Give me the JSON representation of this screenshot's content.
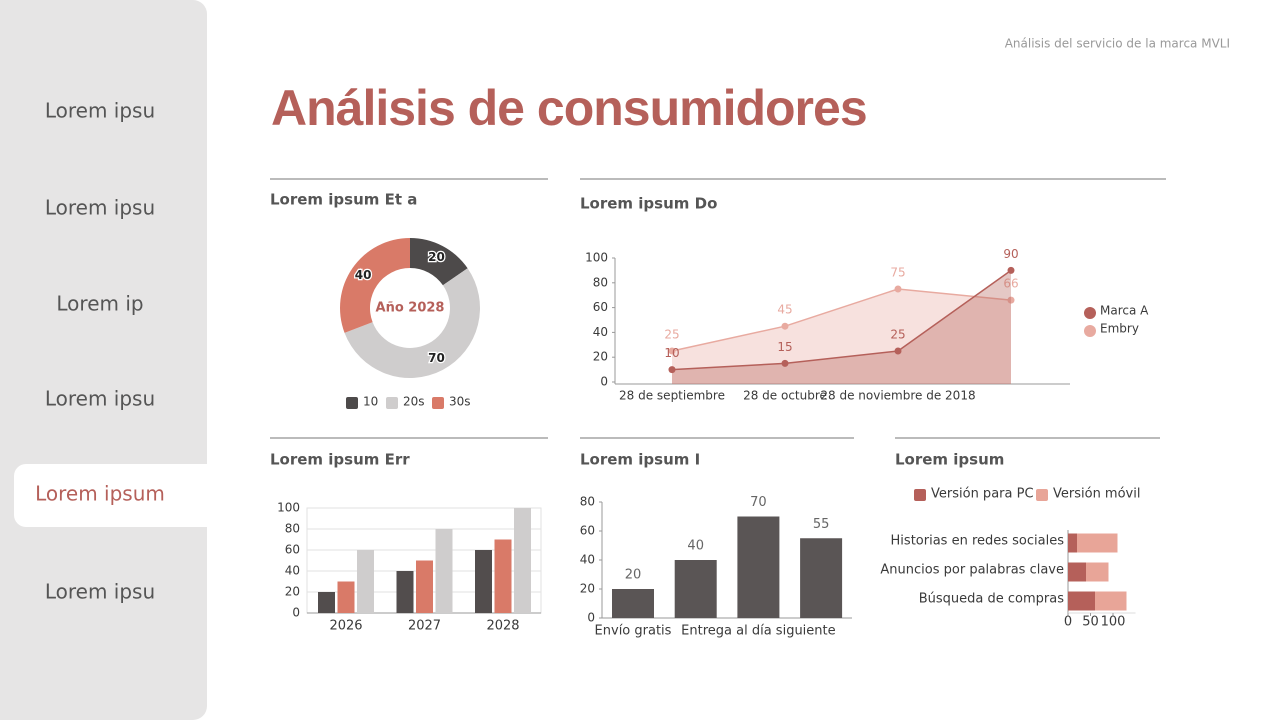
{
  "header": {
    "subtitle": "Análisis del servicio de la marca MVLI",
    "title": "Análisis de consumidores"
  },
  "sidebar": {
    "items": [
      "Lorem ipsu",
      "Lorem ipsu",
      "Lorem ip",
      "Lorem ipsu",
      "Lorem ipsum",
      "Lorem ipsu"
    ],
    "active": 4
  },
  "chart_data": [
    {
      "type": "donut",
      "title": "Lorem ipsum Et a",
      "center_label": "Año 2028",
      "categories": [
        "10",
        "20s",
        "30s"
      ],
      "values": [
        20,
        70,
        40
      ],
      "colors": [
        "#4d4a4a",
        "#cfcdcd",
        "#d97a68"
      ],
      "legend": "bottom"
    },
    {
      "type": "area",
      "title": "Lorem ipsum Do",
      "categories": [
        "28 de septiembre",
        "28 de octubre",
        "28 de noviembre de 2018",
        null
      ],
      "series": [
        {
          "name": "Marca A",
          "color": "#b5605a",
          "values": [
            10,
            15,
            25,
            90
          ]
        },
        {
          "name": "Embry",
          "color": "#e8aaa0",
          "values": [
            25,
            45,
            75,
            66
          ]
        }
      ],
      "ylim": [
        0,
        100
      ],
      "yticks": [
        0,
        20,
        40,
        60,
        80,
        100
      ],
      "legend": "right"
    },
    {
      "type": "bar",
      "title": "Lorem ipsum Err",
      "categories": [
        "2026",
        "2027",
        "2028"
      ],
      "series": [
        {
          "color": "#524d4d",
          "values": [
            20,
            40,
            60
          ]
        },
        {
          "color": "#d97a68",
          "values": [
            30,
            50,
            70
          ]
        },
        {
          "color": "#cfcdcd",
          "values": [
            60,
            80,
            100
          ]
        }
      ],
      "ylim": [
        0,
        100
      ],
      "yticks": [
        0,
        20,
        40,
        60,
        80,
        100
      ],
      "grid": true
    },
    {
      "type": "bar",
      "title": "Lorem ipsum I",
      "categories": [
        "Envío gratis",
        null,
        "Entrega al día siguiente",
        null
      ],
      "series": [
        {
          "color": "#5a5555",
          "values": [
            20,
            40,
            70,
            55
          ]
        }
      ],
      "ylim": [
        0,
        80
      ],
      "yticks": [
        0,
        20,
        40,
        60,
        80
      ],
      "value_labels_shown": true
    },
    {
      "type": "stacked_barh",
      "title": "Lorem ipsum",
      "categories": [
        "Historias en redes sociales",
        "Anuncios por palabras clave",
        "Búsqueda de compras"
      ],
      "series": [
        {
          "name": "Versión para PC",
          "color": "#b5605a",
          "values": [
            20,
            40,
            60
          ]
        },
        {
          "name": "Versión móvil",
          "color": "#e8a598",
          "values": [
            90,
            50,
            70
          ]
        }
      ],
      "xlim": [
        0,
        150
      ],
      "xticks": [
        0,
        50,
        100
      ],
      "legend": "top"
    }
  ]
}
